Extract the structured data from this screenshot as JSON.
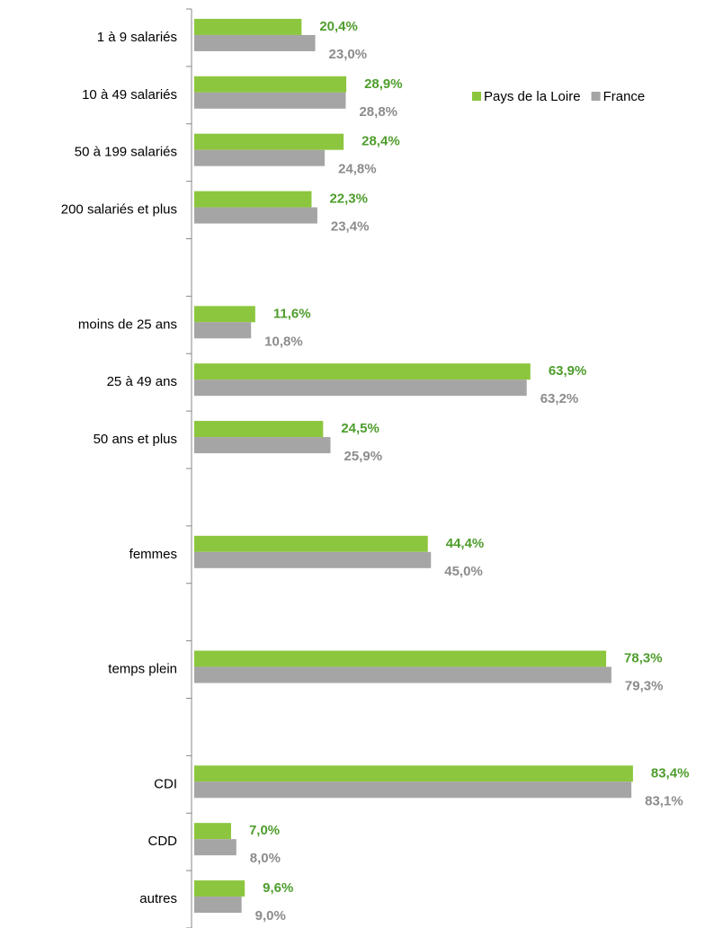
{
  "chart_data": {
    "type": "hbar",
    "categories": [
      "1 à 9 salariés",
      "10 à 49 salariés",
      "50 à 199 salariés",
      "200 salariés et plus",
      null,
      "moins de 25 ans",
      "25 à 49 ans",
      "50 ans et plus",
      null,
      "femmes",
      null,
      "temps plein",
      null,
      "CDI",
      "CDD",
      "autres"
    ],
    "series": [
      {
        "name": "Pays de la Loire",
        "color": "#8cc63e",
        "label_color": "#4e9d2d",
        "values": [
          20.4,
          28.9,
          28.4,
          22.3,
          null,
          11.6,
          63.9,
          24.5,
          null,
          44.4,
          null,
          78.3,
          null,
          83.4,
          7.0,
          9.6
        ],
        "value_labels": [
          "20,4%",
          "28,9%",
          "28,4%",
          "22,3%",
          null,
          "11,6%",
          "63,9%",
          "24,5%",
          null,
          "44,4%",
          null,
          "78,3%",
          null,
          "83,4%",
          "7,0%",
          "9,6%"
        ]
      },
      {
        "name": "France",
        "color": "#a5a5a5",
        "label_color": "#8c8c8c",
        "values": [
          23.0,
          28.8,
          24.8,
          23.4,
          null,
          10.8,
          63.2,
          25.9,
          null,
          45.0,
          null,
          79.3,
          null,
          83.1,
          8.0,
          9.0
        ],
        "value_labels": [
          "23,0%",
          "28,8%",
          "24,8%",
          "23,4%",
          null,
          "10,8%",
          "63,2%",
          "25,9%",
          null,
          "45,0%",
          null,
          "79,3%",
          null,
          "83,1%",
          "8,0%",
          "9,0%"
        ]
      }
    ],
    "xlim": [
      0,
      90
    ]
  }
}
